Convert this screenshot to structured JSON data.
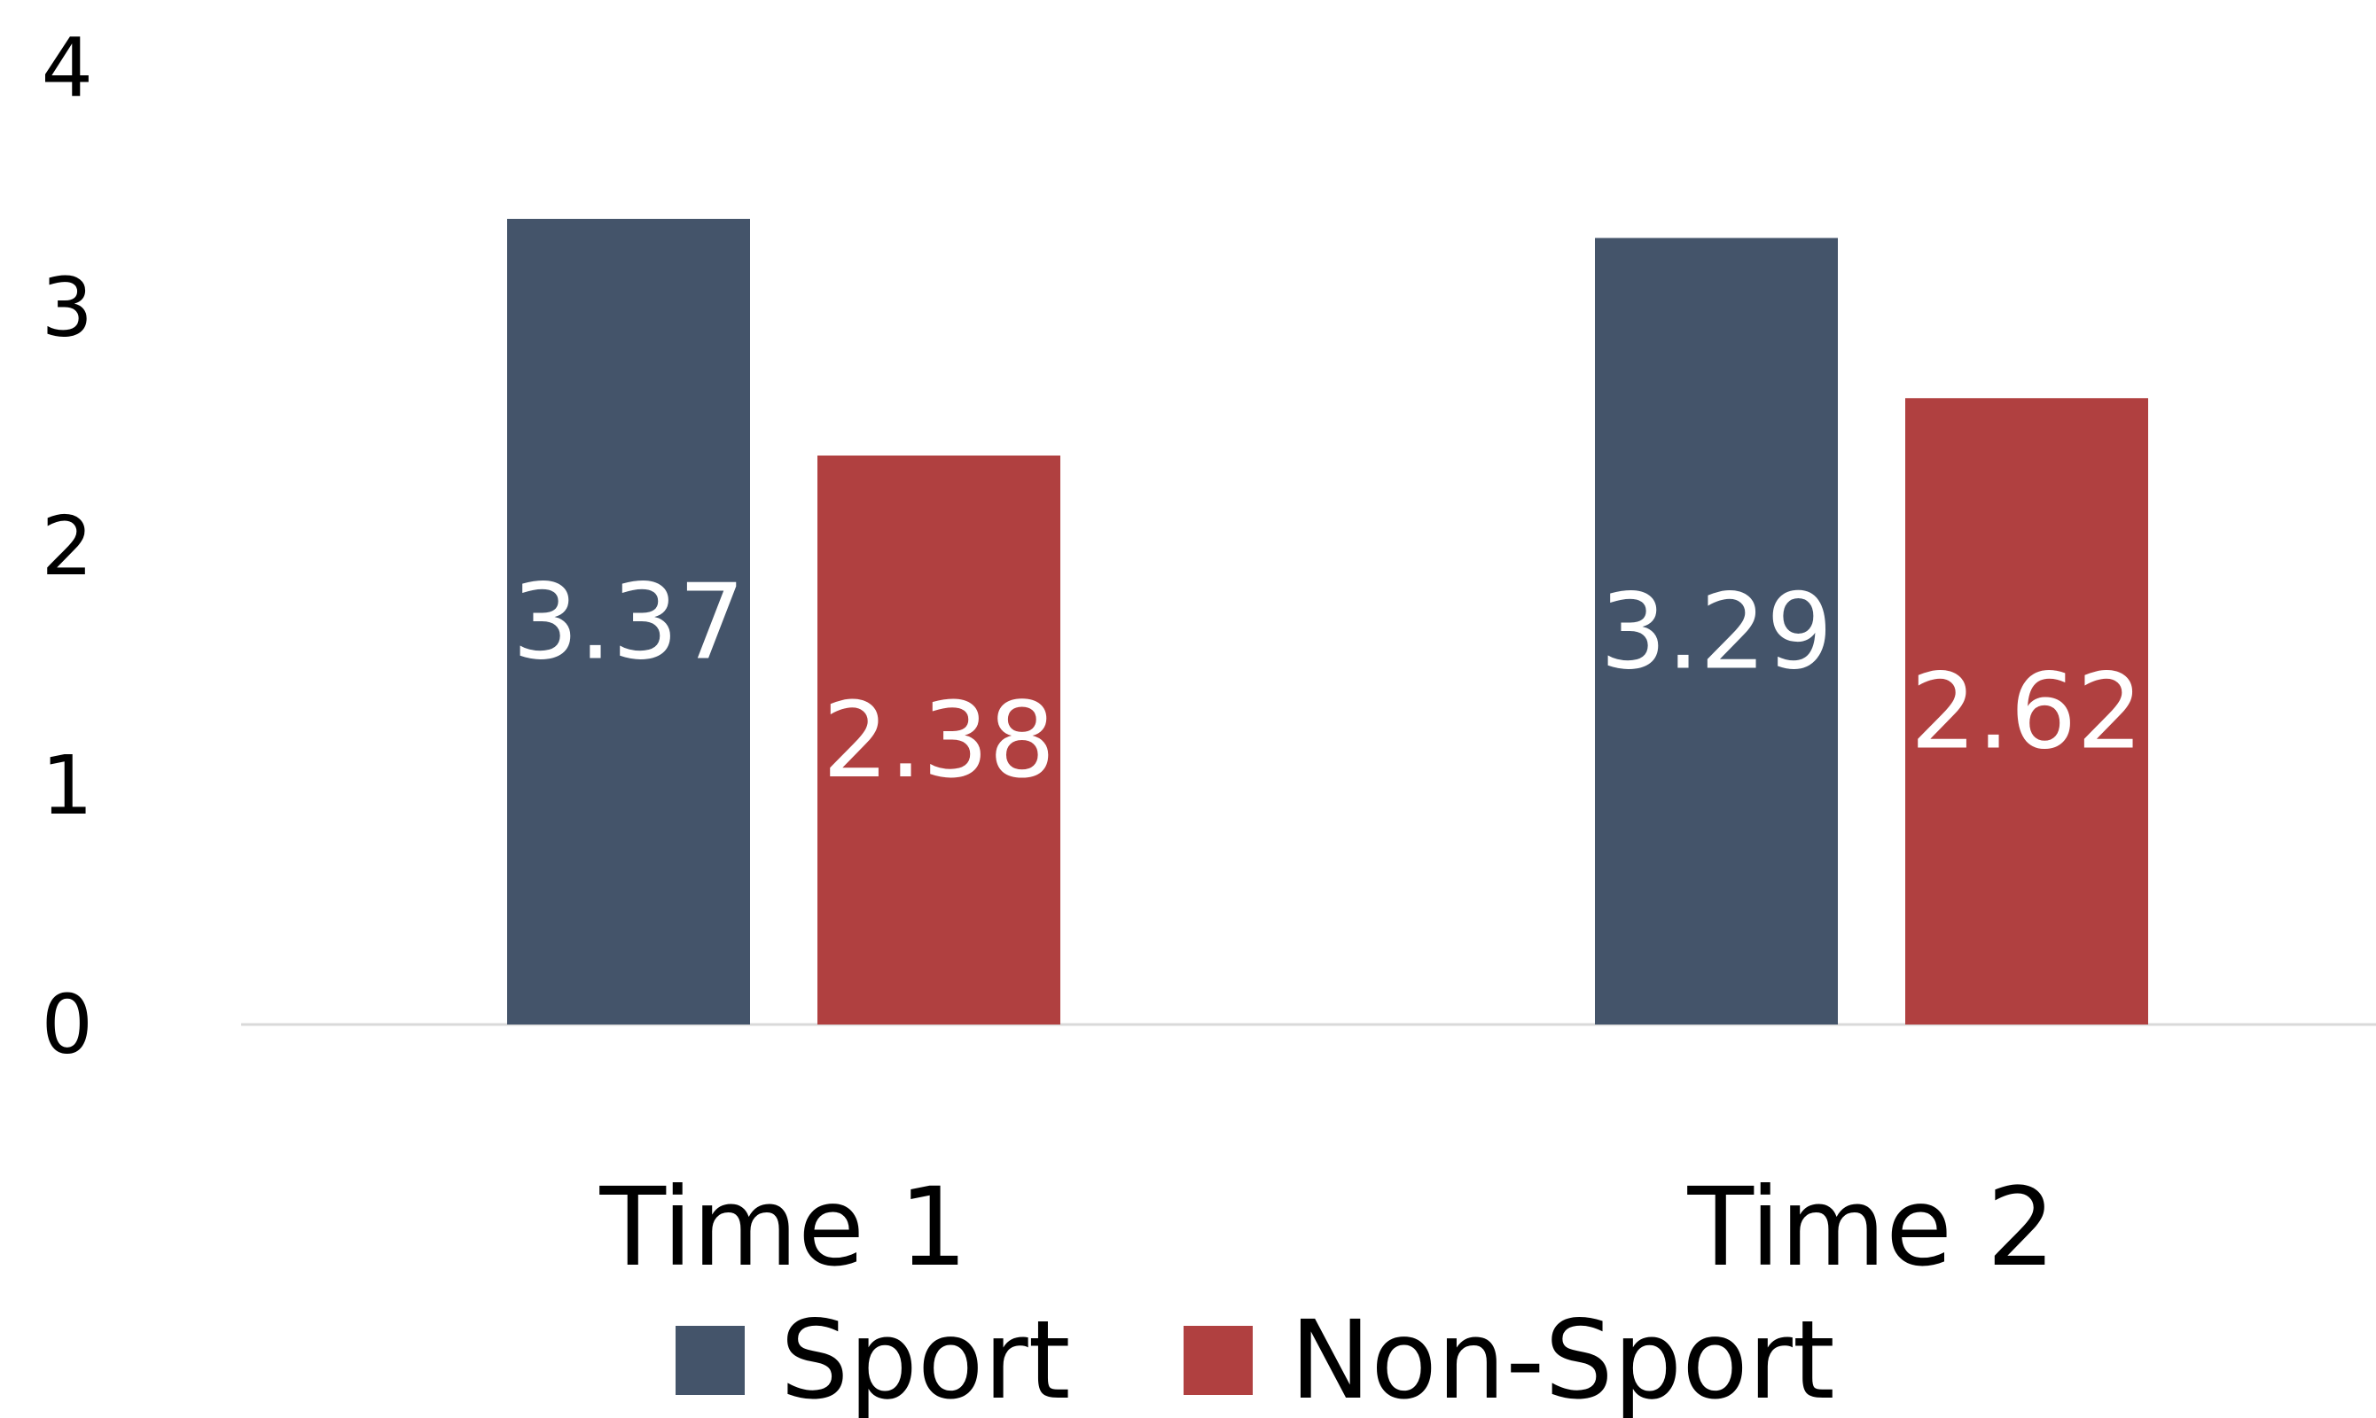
{
  "chart_data": {
    "type": "bar",
    "title": "",
    "xlabel": "",
    "ylabel": "",
    "categories": [
      "Time 1",
      "Time 2"
    ],
    "series": [
      {
        "name": "Sport",
        "values": [
          3.37,
          3.29
        ],
        "color": "#44546a"
      },
      {
        "name": "Non-Sport",
        "values": [
          2.38,
          2.62
        ],
        "color": "#b04040"
      }
    ],
    "ylim": [
      0,
      4
    ],
    "yticks": [
      "0",
      "1",
      "2",
      "3",
      "4"
    ],
    "grid": false,
    "legend": "bottom-center",
    "data_labels": true
  }
}
